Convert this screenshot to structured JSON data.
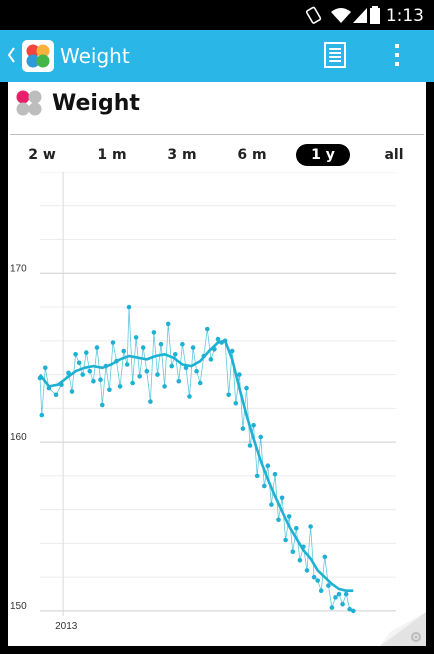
{
  "status_bar": {
    "time": "1:13",
    "icons": [
      "rotation-lock-icon",
      "wifi-icon",
      "cell-signal-icon",
      "battery-icon"
    ]
  },
  "app_bar": {
    "title": "Weight",
    "background_color": "#2bb6e8",
    "icons": [
      "back-chevron-icon",
      "app-logo-icon",
      "list-view-icon",
      "overflow-menu-icon"
    ]
  },
  "header": {
    "title": "Weight"
  },
  "range_tabs": [
    {
      "label": "2 w",
      "selected": false
    },
    {
      "label": "1 m",
      "selected": false
    },
    {
      "label": "3 m",
      "selected": false
    },
    {
      "label": "6 m",
      "selected": false
    },
    {
      "label": "1 y",
      "selected": true
    },
    {
      "label": "all",
      "selected": false
    }
  ],
  "chart_data": {
    "type": "line",
    "ylim": [
      149.7,
      176
    ],
    "y_ticks": [
      {
        "value": 170,
        "label": "170"
      },
      {
        "value": 160,
        "label": "160"
      },
      {
        "value": 150,
        "label": "150"
      }
    ],
    "x_ticks": [
      {
        "value": 1.3,
        "label": "2013"
      }
    ],
    "x_range": [
      0,
      20
    ],
    "grid": true,
    "line_color": "#1fb0d2",
    "series": [
      {
        "role": "measurements",
        "points": [
          [
            0.0,
            163.8
          ],
          [
            0.1,
            161.6
          ],
          [
            0.3,
            164.4
          ],
          [
            0.5,
            163.2
          ],
          [
            0.9,
            162.8
          ],
          [
            1.2,
            163.4
          ],
          [
            1.6,
            164.1
          ],
          [
            1.8,
            163.0
          ],
          [
            2.0,
            165.2
          ],
          [
            2.2,
            164.7
          ],
          [
            2.4,
            164.0
          ],
          [
            2.6,
            165.3
          ],
          [
            2.8,
            164.2
          ],
          [
            3.0,
            163.6
          ],
          [
            3.2,
            165.6
          ],
          [
            3.4,
            163.7
          ],
          [
            3.5,
            162.2
          ],
          [
            3.7,
            164.5
          ],
          [
            3.9,
            163.1
          ],
          [
            4.1,
            165.9
          ],
          [
            4.3,
            164.8
          ],
          [
            4.5,
            163.3
          ],
          [
            4.7,
            165.4
          ],
          [
            4.9,
            164.6
          ],
          [
            5.0,
            168.0
          ],
          [
            5.2,
            163.5
          ],
          [
            5.4,
            166.2
          ],
          [
            5.6,
            163.9
          ],
          [
            5.8,
            165.6
          ],
          [
            6.0,
            164.2
          ],
          [
            6.2,
            162.4
          ],
          [
            6.4,
            166.5
          ],
          [
            6.6,
            164.0
          ],
          [
            6.8,
            165.8
          ],
          [
            7.0,
            163.3
          ],
          [
            7.2,
            167.0
          ],
          [
            7.4,
            164.5
          ],
          [
            7.6,
            165.2
          ],
          [
            7.8,
            163.6
          ],
          [
            8.0,
            165.8
          ],
          [
            8.2,
            164.4
          ],
          [
            8.4,
            162.7
          ],
          [
            8.6,
            165.6
          ],
          [
            8.8,
            164.2
          ],
          [
            9.0,
            163.5
          ],
          [
            9.2,
            165.1
          ],
          [
            9.4,
            166.7
          ],
          [
            9.6,
            164.9
          ],
          [
            9.8,
            165.5
          ],
          [
            10.0,
            166.1
          ],
          [
            10.2,
            165.9
          ],
          [
            10.4,
            166.0
          ],
          [
            10.6,
            162.8
          ],
          [
            10.8,
            165.4
          ],
          [
            11.0,
            162.3
          ],
          [
            11.2,
            164.0
          ],
          [
            11.4,
            160.8
          ],
          [
            11.6,
            163.2
          ],
          [
            11.8,
            159.8
          ],
          [
            12.0,
            161.0
          ],
          [
            12.2,
            158.0
          ],
          [
            12.4,
            160.3
          ],
          [
            12.6,
            157.4
          ],
          [
            12.8,
            158.6
          ],
          [
            13.0,
            156.3
          ],
          [
            13.2,
            158.1
          ],
          [
            13.4,
            155.4
          ],
          [
            13.6,
            156.7
          ],
          [
            13.8,
            154.2
          ],
          [
            14.0,
            155.6
          ],
          [
            14.2,
            153.5
          ],
          [
            14.4,
            154.9
          ],
          [
            14.6,
            153.0
          ],
          [
            14.8,
            153.8
          ],
          [
            15.0,
            152.4
          ],
          [
            15.2,
            155.0
          ],
          [
            15.4,
            152.0
          ],
          [
            15.6,
            151.8
          ],
          [
            15.8,
            151.2
          ],
          [
            16.0,
            153.2
          ],
          [
            16.2,
            151.5
          ],
          [
            16.4,
            150.2
          ],
          [
            16.6,
            150.8
          ],
          [
            16.8,
            151.0
          ],
          [
            17.0,
            150.4
          ],
          [
            17.2,
            151.0
          ],
          [
            17.4,
            150.1
          ],
          [
            17.6,
            150.0
          ]
        ]
      },
      {
        "role": "trend",
        "points": [
          [
            0.0,
            164.0
          ],
          [
            0.5,
            163.3
          ],
          [
            1.0,
            163.4
          ],
          [
            1.5,
            163.8
          ],
          [
            2.0,
            164.2
          ],
          [
            2.5,
            164.4
          ],
          [
            3.0,
            164.5
          ],
          [
            3.5,
            164.4
          ],
          [
            4.0,
            164.6
          ],
          [
            4.5,
            164.9
          ],
          [
            5.0,
            165.1
          ],
          [
            5.5,
            165.0
          ],
          [
            6.0,
            164.9
          ],
          [
            6.5,
            165.1
          ],
          [
            7.0,
            165.2
          ],
          [
            7.5,
            165.0
          ],
          [
            8.0,
            164.6
          ],
          [
            8.5,
            164.5
          ],
          [
            9.0,
            164.8
          ],
          [
            9.5,
            165.4
          ],
          [
            10.0,
            165.9
          ],
          [
            10.4,
            166.0
          ],
          [
            10.8,
            164.9
          ],
          [
            11.2,
            163.2
          ],
          [
            11.6,
            161.6
          ],
          [
            12.0,
            160.2
          ],
          [
            12.4,
            158.9
          ],
          [
            12.8,
            157.8
          ],
          [
            13.2,
            156.8
          ],
          [
            13.6,
            155.9
          ],
          [
            14.0,
            155.0
          ],
          [
            14.4,
            154.3
          ],
          [
            14.8,
            153.6
          ],
          [
            15.2,
            153.1
          ],
          [
            15.6,
            152.4
          ],
          [
            16.0,
            152.0
          ],
          [
            16.4,
            151.6
          ],
          [
            16.8,
            151.3
          ],
          [
            17.2,
            151.2
          ],
          [
            17.6,
            151.2
          ]
        ]
      }
    ]
  }
}
